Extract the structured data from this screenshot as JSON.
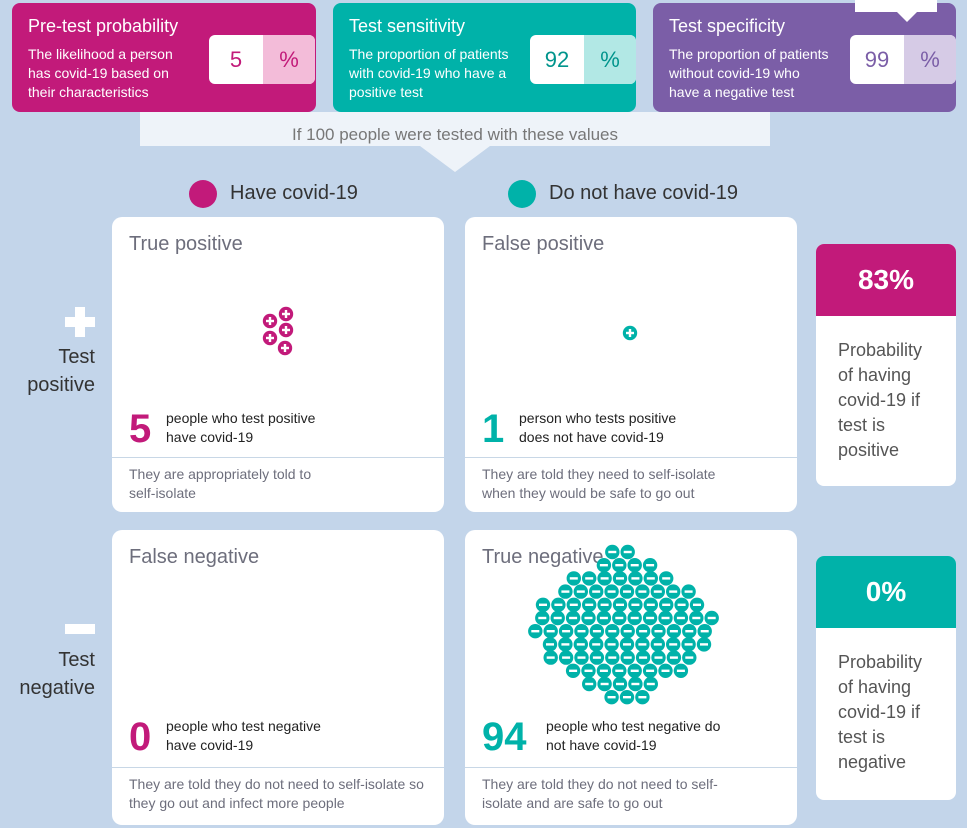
{
  "inputs": {
    "pretest": {
      "title": "Pre-test probability",
      "description": "The likelihood a person has covid-19 based on their characteristics",
      "value": "5",
      "unit": "%"
    },
    "sensitivity": {
      "title": "Test sensitivity",
      "description": "The proportion of patients with covid-19 who have a positive test",
      "value": "92",
      "unit": "%"
    },
    "specificity": {
      "title": "Test specificity",
      "description": "The proportion of patients without covid-19 who have a negative test",
      "value": "99",
      "unit": "%"
    }
  },
  "banner": "If 100 people were tested with these values",
  "legend": {
    "have": "Have covid-19",
    "not_have": "Do not have covid-19"
  },
  "rows": {
    "positive": "Test positive",
    "negative": "Test negative"
  },
  "cells": {
    "true_positive": {
      "title": "True positive",
      "count": "5",
      "label": "people who test positive have covid-19",
      "note": "They are appropriately told to self-isolate"
    },
    "false_positive": {
      "title": "False positive",
      "count": "1",
      "label": "person who tests positive does not have covid-19",
      "note": "They are told they need to self-isolate when they would be safe to go out"
    },
    "false_negative": {
      "title": "False negative",
      "count": "0",
      "label": "people who test negative have covid-19",
      "note": "They are told they do not need to self-isolate so they go out and infect more people"
    },
    "true_negative": {
      "title": "True negative",
      "count": "94",
      "label": "people who test negative do not have covid-19",
      "note": "They are told they do not need to self-isolate and are safe to go out"
    }
  },
  "probabilities": {
    "positive": {
      "value": "83%",
      "text": "Probability of having covid-19 if test is positive"
    },
    "negative": {
      "value": "0%",
      "text": "Probability of having covid-19 if test is negative"
    }
  },
  "colors": {
    "magenta": "#c21a7a",
    "teal": "#00b2a9",
    "purple": "#7b5ea7"
  },
  "icons": {
    "positive": "plus-icon",
    "negative": "minus-icon"
  }
}
